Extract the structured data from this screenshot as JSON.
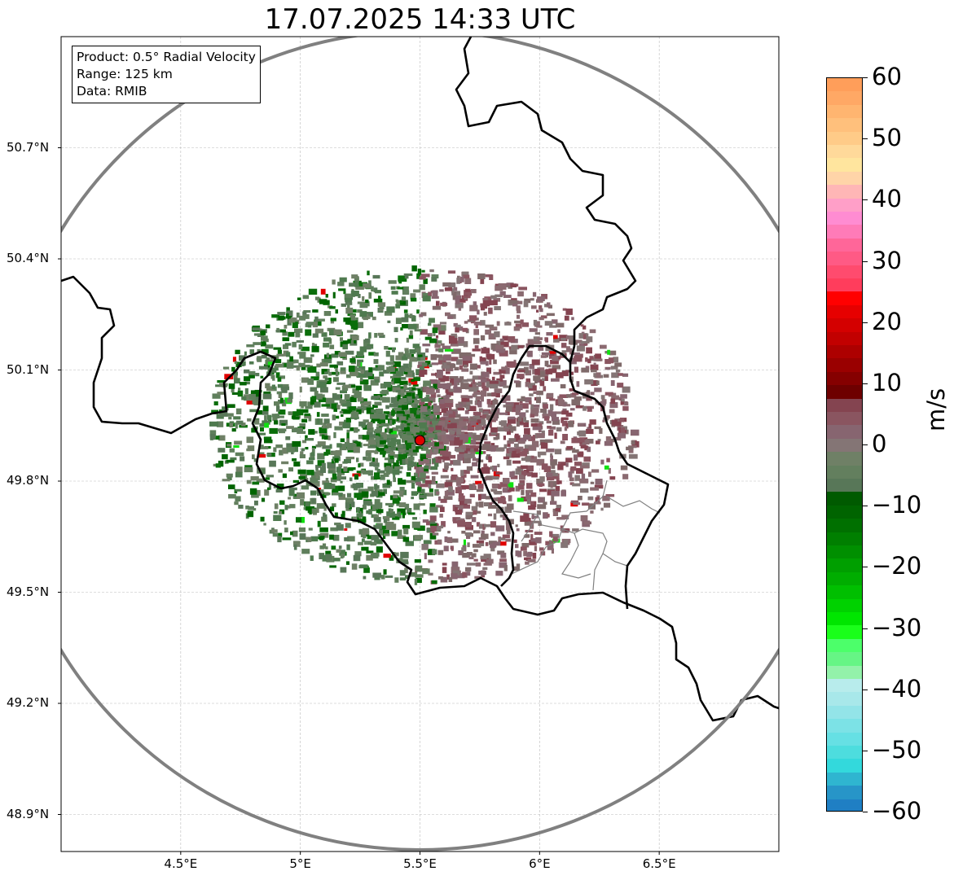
{
  "title": "17.07.2025 14:33 UTC",
  "info_box": {
    "product": "Product: 0.5° Radial Velocity",
    "range": "Range: 125 km",
    "data": "Data: RMIB"
  },
  "map": {
    "lon_range": [
      4.0,
      7.0
    ],
    "lat_range": [
      48.8,
      51.0
    ],
    "radar_site": {
      "lon": 5.5,
      "lat": 49.91,
      "color": "#e00000"
    },
    "range_km": 125,
    "x_ticks": [
      {
        "value": 4.5,
        "label": "4.5°E"
      },
      {
        "value": 5.0,
        "label": "5°E"
      },
      {
        "value": 5.5,
        "label": "5.5°E"
      },
      {
        "value": 6.0,
        "label": "6°E"
      },
      {
        "value": 6.5,
        "label": "6.5°E"
      }
    ],
    "y_ticks": [
      {
        "value": 50.7,
        "label": "50.7°N"
      },
      {
        "value": 50.4,
        "label": "50.4°N"
      },
      {
        "value": 50.1,
        "label": "50.1°N"
      },
      {
        "value": 49.8,
        "label": "49.8°N"
      },
      {
        "value": 49.5,
        "label": "49.5°N"
      },
      {
        "value": 49.2,
        "label": "49.2°N"
      },
      {
        "value": 48.9,
        "label": "48.9°N"
      }
    ]
  },
  "colorbar": {
    "unit": "m/s",
    "min": -60,
    "max": 60,
    "ticks": [
      {
        "value": 60,
        "label": "60"
      },
      {
        "value": 50,
        "label": "50"
      },
      {
        "value": 40,
        "label": "40"
      },
      {
        "value": 30,
        "label": "30"
      },
      {
        "value": 20,
        "label": "20"
      },
      {
        "value": 10,
        "label": "10"
      },
      {
        "value": 0,
        "label": "0"
      },
      {
        "value": -10,
        "label": "−10"
      },
      {
        "value": -20,
        "label": "−20"
      },
      {
        "value": -30,
        "label": "−30"
      },
      {
        "value": -40,
        "label": "−40"
      },
      {
        "value": -50,
        "label": "−50"
      },
      {
        "value": -60,
        "label": "−60"
      }
    ],
    "colors_top_to_bottom": [
      "#ff9e5a",
      "#ffa865",
      "#ffb570",
      "#ffc07c",
      "#ffcb88",
      "#ffd99a",
      "#ffe59e",
      "#ffd4a8",
      "#ffb6b6",
      "#ff9fc8",
      "#ff8cd2",
      "#ff7bb8",
      "#ff6699",
      "#ff5a85",
      "#ff4b6e",
      "#ff3d5c",
      "#ff0000",
      "#e60000",
      "#d40000",
      "#c20000",
      "#ad0000",
      "#9a0000",
      "#850000",
      "#6e0000",
      "#844450",
      "#8a5560",
      "#876570",
      "#847575",
      "#6f8066",
      "#637f5e",
      "#587758",
      "#005a00",
      "#006400",
      "#007000",
      "#007f00",
      "#008f00",
      "#009f00",
      "#00ad00",
      "#00bf00",
      "#00d200",
      "#00e600",
      "#1aff1a",
      "#4cff6a",
      "#66f585",
      "#93f2aa",
      "#b8ecec",
      "#a8e8ea",
      "#93e4e8",
      "#7ce2e6",
      "#66e0e4",
      "#4dddde",
      "#33d9dc",
      "#2fb5d0",
      "#2795c8",
      "#1f7fc4"
    ]
  }
}
